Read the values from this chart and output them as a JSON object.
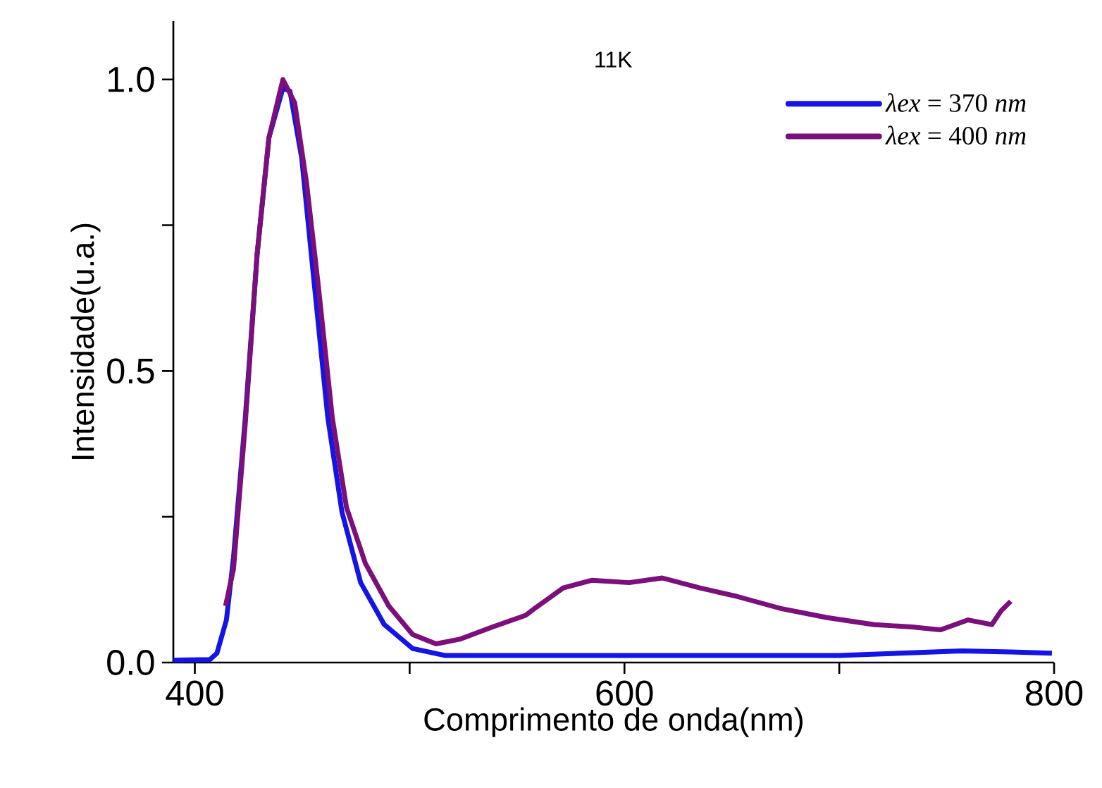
{
  "chart_data": {
    "type": "line",
    "xlabel": "Comprimento de onda(nm)",
    "ylabel": "Intensidade(u.a.)",
    "annotations": [
      "11K"
    ],
    "xlim": [
      390,
      800
    ],
    "ylim": [
      0,
      1.1
    ],
    "xticks": [
      400,
      {
        "value": 500,
        "label": null
      },
      600,
      {
        "value": 700,
        "label": null
      },
      800
    ],
    "yticks": [
      {
        "value": 0,
        "label": "0.0"
      },
      {
        "value": 0.25,
        "label": null
      },
      {
        "value": 0.5,
        "label": "0.5"
      },
      {
        "value": 0.75,
        "label": null
      },
      {
        "value": 1.0,
        "label": "1.0"
      }
    ],
    "grid": false,
    "legend": "top right",
    "marker": "none",
    "line_style": "solid",
    "series": [
      {
        "name": "*λex* = 370 *nm*",
        "color": "#1414e6",
        "x": [
          390,
          407,
          410.3,
          414.7,
          418,
          423.5,
          429,
          434.5,
          441,
          444.3,
          449.8,
          455.3,
          461.9,
          468.5,
          477.2,
          488.2,
          501.4,
          516.7,
          549.6,
          600,
          650,
          700,
          757,
          780,
          799
        ],
        "values": [
          0.004,
          0.005,
          0.016,
          0.073,
          0.18,
          0.42,
          0.7,
          0.9,
          0.985,
          0.98,
          0.864,
          0.66,
          0.42,
          0.258,
          0.137,
          0.065,
          0.024,
          0.012,
          0.012,
          0.012,
          0.012,
          0.012,
          0.02,
          0.018,
          0.016
        ]
      },
      {
        "name": "*λex* = 400 *nm*",
        "color": "#7b0f7b",
        "x": [
          414.3,
          418,
          423.5,
          429,
          434.5,
          441,
          446.5,
          452,
          457.5,
          464,
          470.6,
          479.4,
          490.3,
          501.4,
          512.3,
          523.3,
          538.6,
          554,
          558.3,
          571.5,
          584.7,
          602.2,
          617.6,
          635.1,
          652.7,
          672.4,
          694.3,
          716.3,
          733.8,
          747,
          760,
          771,
          775.4,
          779.8
        ],
        "values": [
          0.097,
          0.16,
          0.41,
          0.7,
          0.9,
          1.0,
          0.96,
          0.823,
          0.646,
          0.42,
          0.266,
          0.17,
          0.097,
          0.048,
          0.032,
          0.04,
          0.061,
          0.081,
          0.093,
          0.128,
          0.141,
          0.137,
          0.145,
          0.128,
          0.113,
          0.093,
          0.077,
          0.065,
          0.061,
          0.056,
          0.073,
          0.065,
          0.089,
          0.105
        ]
      }
    ]
  }
}
